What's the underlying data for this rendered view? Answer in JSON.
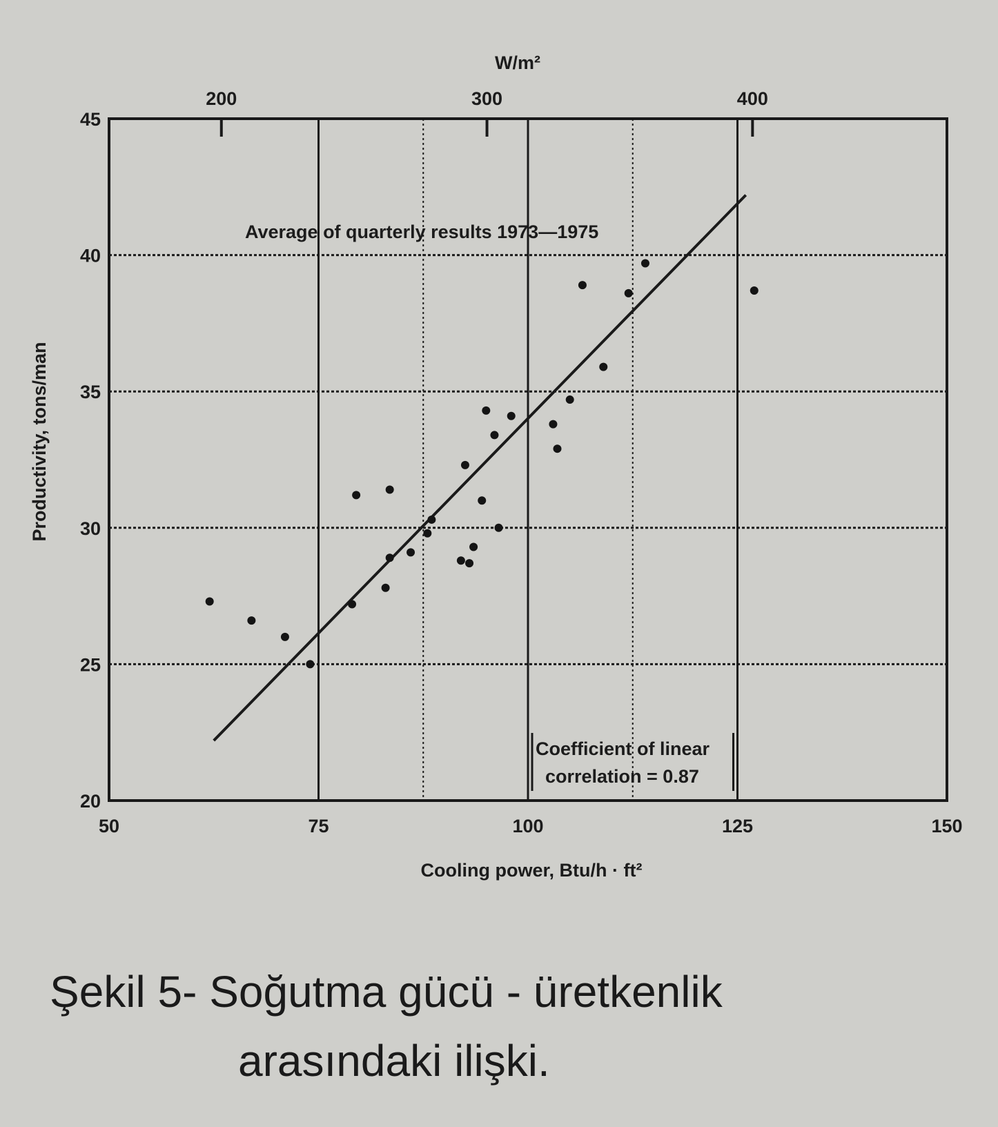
{
  "chart_data": {
    "type": "scatter",
    "x_axis": {
      "label": "Cooling power, Btu/h · ft²",
      "range": [
        50,
        150
      ],
      "ticks": [
        "50",
        "75",
        "100",
        "125",
        "150"
      ]
    },
    "x2_axis": {
      "label": "W/m²",
      "range": [
        157.7,
        473.2
      ],
      "ticks": [
        200,
        300,
        400
      ]
    },
    "y_axis": {
      "label": "Productivity, tons/man",
      "range": [
        20,
        45
      ],
      "ticks": [
        "20",
        "25",
        "30",
        "35",
        "40",
        "45"
      ]
    },
    "grid": true,
    "annotations": {
      "title": "Average of quarterly results 1973—1975",
      "correlation_line1": "Coefficient of linear",
      "correlation_line2": "correlation = 0.87"
    },
    "regression_line": {
      "x": [
        62.5,
        126
      ],
      "y": [
        22.2,
        42.2
      ]
    },
    "points": [
      {
        "x": 62,
        "y": 27.3
      },
      {
        "x": 67,
        "y": 26.6
      },
      {
        "x": 71,
        "y": 26.0
      },
      {
        "x": 74,
        "y": 25.0
      },
      {
        "x": 79,
        "y": 27.2
      },
      {
        "x": 79.5,
        "y": 31.2
      },
      {
        "x": 83,
        "y": 27.8
      },
      {
        "x": 83.5,
        "y": 28.9
      },
      {
        "x": 83.5,
        "y": 31.4
      },
      {
        "x": 86,
        "y": 29.1
      },
      {
        "x": 88,
        "y": 29.8
      },
      {
        "x": 88.5,
        "y": 30.3
      },
      {
        "x": 92,
        "y": 28.8
      },
      {
        "x": 92.5,
        "y": 32.3
      },
      {
        "x": 93,
        "y": 28.7
      },
      {
        "x": 93.5,
        "y": 29.3
      },
      {
        "x": 94.5,
        "y": 31.0
      },
      {
        "x": 95,
        "y": 34.3
      },
      {
        "x": 96,
        "y": 33.4
      },
      {
        "x": 96.5,
        "y": 30.0
      },
      {
        "x": 98,
        "y": 34.1
      },
      {
        "x": 103,
        "y": 33.8
      },
      {
        "x": 103.5,
        "y": 32.9
      },
      {
        "x": 105,
        "y": 34.7
      },
      {
        "x": 106.5,
        "y": 38.9
      },
      {
        "x": 109,
        "y": 35.9
      },
      {
        "x": 112,
        "y": 38.6
      },
      {
        "x": 114,
        "y": 39.7
      },
      {
        "x": 127,
        "y": 38.7
      }
    ]
  },
  "caption": {
    "line1": "Şekil 5- Soğutma gücü - üretkenlik",
    "line2": "arasındaki ilişki."
  }
}
